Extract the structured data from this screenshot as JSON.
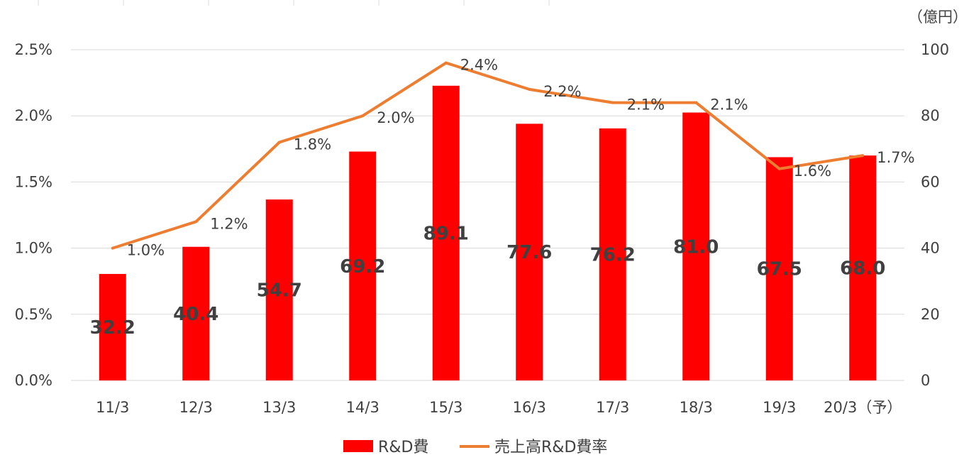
{
  "chart_data": {
    "type": "bar",
    "categories": [
      "11/3",
      "12/3",
      "13/3",
      "14/3",
      "15/3",
      "16/3",
      "17/3",
      "18/3",
      "19/3",
      "20/3（予）"
    ],
    "series": [
      {
        "name": "R&D費",
        "type": "bar",
        "axis": "right",
        "color": "#ff0000",
        "values": [
          32.2,
          40.4,
          54.7,
          69.2,
          89.1,
          77.6,
          76.2,
          81.0,
          67.5,
          68.0
        ],
        "value_labels": [
          "32.2",
          "40.4",
          "54.7",
          "69.2",
          "89.1",
          "77.6",
          "76.2",
          "81.0",
          "67.5",
          "68.0"
        ]
      },
      {
        "name": "売上高R&D費率",
        "type": "line",
        "axis": "left",
        "color": "#ed7d31",
        "values": [
          1.0,
          1.2,
          1.8,
          2.0,
          2.4,
          2.2,
          2.1,
          2.1,
          1.6,
          1.7
        ],
        "value_labels": [
          "1.0%",
          "1.2%",
          "1.8%",
          "2.0%",
          "2.4%",
          "2.2%",
          "2.1%",
          "2.1%",
          "1.6%",
          "1.7%"
        ]
      }
    ],
    "left_axis": {
      "ylim": [
        0,
        2.5
      ],
      "ticks": [
        "0.0%",
        "0.5%",
        "1.0%",
        "1.5%",
        "2.0%",
        "2.5%"
      ]
    },
    "right_axis": {
      "ylim": [
        0,
        100
      ],
      "ticks": [
        "0",
        "20",
        "40",
        "60",
        "80",
        "100"
      ],
      "unit": "（億円）"
    },
    "grid": true,
    "legend_position": "bottom"
  }
}
